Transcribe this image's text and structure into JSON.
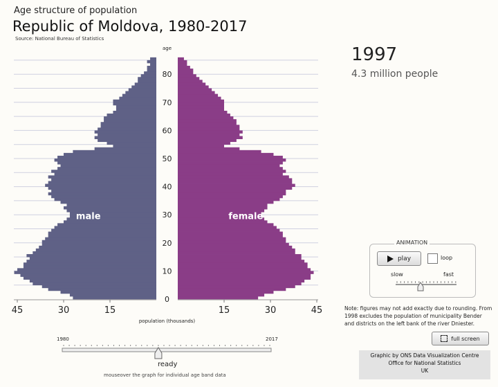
{
  "header": {
    "pre_title": "Age structure of population",
    "title": "Republic of Moldova, 1980-2017",
    "source": "Source: National Bureau of Statistics"
  },
  "display": {
    "year": "1997",
    "people": "4.3 million people"
  },
  "animation": {
    "title": "ANIMATION",
    "play_label": "play",
    "loop_label": "loop",
    "slow_label": "slow",
    "fast_label": "fast",
    "speed_level": 0.4
  },
  "note": "Note: figures may not add exactly due to rounding. From 1998 excludes the population of municipality Bender and districts on the left bank of the river Dniester.",
  "fullscreen_label": "full screen",
  "credits": [
    "Graphic by ONS Data Visualization Centre",
    "Office for National Statistics",
    "UK"
  ],
  "timeline": {
    "start_label": "1980",
    "end_label": "2017",
    "status": "ready",
    "hint": "mouseover the graph for individual age band data",
    "position_year": 1997
  },
  "colors": {
    "male": "#5f6186",
    "female": "#8a3d87",
    "grid": "#cfd0e0"
  },
  "chart_data": {
    "type": "bar",
    "title": "Republic of Moldova, 1980-2017",
    "xlabel": "population (thousands)",
    "ylabel": "age",
    "x_ticks": [
      "45",
      "30",
      "15",
      "15",
      "30",
      "45"
    ],
    "y_ticks": [
      "0",
      "10",
      "20",
      "30",
      "40",
      "50",
      "60",
      "70",
      "80"
    ],
    "xlim": [
      0,
      45
    ],
    "ylim": [
      0,
      85
    ],
    "grid": true,
    "series_labels": {
      "male": "male",
      "female": "female"
    },
    "ages": [
      0,
      1,
      2,
      3,
      4,
      5,
      6,
      7,
      8,
      9,
      10,
      11,
      12,
      13,
      14,
      15,
      16,
      17,
      18,
      19,
      20,
      21,
      22,
      23,
      24,
      25,
      26,
      27,
      28,
      29,
      30,
      31,
      32,
      33,
      34,
      35,
      36,
      37,
      38,
      39,
      40,
      41,
      42,
      43,
      44,
      45,
      46,
      47,
      48,
      49,
      50,
      51,
      52,
      53,
      54,
      55,
      56,
      57,
      58,
      59,
      60,
      61,
      62,
      63,
      64,
      65,
      66,
      67,
      68,
      69,
      70,
      71,
      72,
      73,
      74,
      75,
      76,
      77,
      78,
      79,
      80,
      81,
      82,
      83,
      84,
      85
    ],
    "series": [
      {
        "name": "male",
        "values": [
          27,
          28,
          31,
          35,
          37,
          40,
          41,
          43,
          44,
          46,
          45,
          43,
          43,
          42,
          41,
          42,
          40,
          39,
          38,
          37,
          37,
          36,
          35,
          35,
          34,
          33,
          32,
          30,
          29,
          28,
          28,
          29,
          30,
          29,
          31,
          33,
          34,
          35,
          34,
          35,
          36,
          35,
          34,
          35,
          33,
          34,
          32,
          31,
          32,
          33,
          32,
          30,
          27,
          20,
          14,
          16,
          19,
          20,
          19,
          20,
          19,
          18,
          18,
          17,
          17,
          16,
          14,
          13,
          13,
          14,
          14,
          12,
          11,
          10,
          9,
          8,
          7,
          6,
          6,
          5,
          4,
          3,
          3,
          2,
          3,
          2
        ]
      },
      {
        "name": "female",
        "values": [
          26,
          28,
          31,
          35,
          38,
          40,
          41,
          43,
          43,
          44,
          43,
          42,
          42,
          41,
          40,
          40,
          38,
          38,
          37,
          36,
          35,
          35,
          34,
          34,
          33,
          32,
          31,
          29,
          28,
          27,
          27,
          28,
          29,
          29,
          31,
          33,
          34,
          35,
          35,
          37,
          38,
          37,
          37,
          36,
          34,
          35,
          34,
          33,
          34,
          35,
          34,
          31,
          27,
          20,
          15,
          17,
          19,
          21,
          20,
          21,
          20,
          20,
          19,
          19,
          18,
          17,
          16,
          15,
          15,
          15,
          15,
          14,
          13,
          12,
          11,
          10,
          9,
          8,
          7,
          6,
          5,
          5,
          4,
          3,
          3,
          2
        ]
      }
    ]
  }
}
